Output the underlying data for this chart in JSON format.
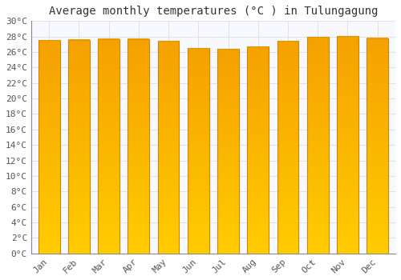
{
  "title": "Average monthly temperatures (°C ) in Tulungagung",
  "months": [
    "Jan",
    "Feb",
    "Mar",
    "Apr",
    "May",
    "Jun",
    "Jul",
    "Aug",
    "Sep",
    "Oct",
    "Nov",
    "Dec"
  ],
  "temperatures": [
    27.5,
    27.6,
    27.7,
    27.7,
    27.4,
    26.5,
    26.4,
    26.7,
    27.4,
    28.0,
    28.1,
    27.8
  ],
  "bar_color_center": "#FFA500",
  "bar_color_edge": "#F5A800",
  "bar_left_edge_color": "#CC8800",
  "bar_right_edge_color": "#CC8800",
  "bar_top_color": "#FFB800",
  "bar_bottom_color": "#FFCC00",
  "ylim": [
    0,
    30
  ],
  "ytick_step": 2,
  "background_color": "#FFFFFF",
  "plot_bg_color": "#F8F8FF",
  "grid_color": "#E0E0EE",
  "title_fontsize": 10,
  "tick_fontsize": 8,
  "font_family": "monospace"
}
